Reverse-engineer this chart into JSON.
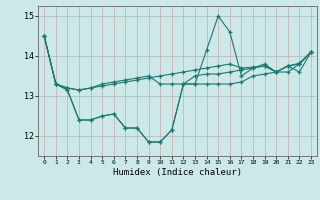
{
  "xlabel": "Humidex (Indice chaleur)",
  "bg_color": "#cce8e8",
  "line_color": "#1a7a6e",
  "x": [
    0,
    1,
    2,
    3,
    4,
    5,
    6,
    7,
    8,
    9,
    10,
    11,
    12,
    13,
    14,
    15,
    16,
    17,
    18,
    19,
    20,
    21,
    22,
    23
  ],
  "line1": [
    14.5,
    13.3,
    13.2,
    13.15,
    13.2,
    13.25,
    13.3,
    13.35,
    13.4,
    13.45,
    13.5,
    13.55,
    13.6,
    13.65,
    13.7,
    13.75,
    13.8,
    13.7,
    13.72,
    13.75,
    13.6,
    13.75,
    13.82,
    14.1
  ],
  "line2": [
    14.5,
    13.3,
    13.15,
    12.4,
    12.4,
    12.5,
    12.55,
    12.2,
    12.2,
    11.85,
    11.85,
    12.15,
    13.3,
    13.3,
    13.3,
    13.3,
    13.3,
    13.35,
    13.5,
    13.55,
    13.6,
    13.6,
    13.8,
    14.1
  ],
  "line3": [
    14.5,
    13.3,
    13.15,
    12.4,
    12.4,
    12.5,
    12.55,
    12.2,
    12.2,
    11.85,
    11.85,
    12.15,
    13.3,
    13.3,
    14.15,
    15.0,
    14.6,
    13.5,
    13.7,
    13.8,
    13.6,
    13.75,
    13.6,
    14.1
  ],
  "line4": [
    14.5,
    13.3,
    13.2,
    13.15,
    13.2,
    13.3,
    13.35,
    13.4,
    13.45,
    13.5,
    13.3,
    13.3,
    13.3,
    13.5,
    13.55,
    13.55,
    13.6,
    13.65,
    13.7,
    13.75,
    13.6,
    13.75,
    13.8,
    14.1
  ],
  "ylim": [
    11.5,
    15.25
  ],
  "yticks": [
    12,
    13,
    14,
    15
  ],
  "xlim": [
    -0.5,
    23.5
  ],
  "xticks": [
    0,
    1,
    2,
    3,
    4,
    5,
    6,
    7,
    8,
    9,
    10,
    11,
    12,
    13,
    14,
    15,
    16,
    17,
    18,
    19,
    20,
    21,
    22,
    23
  ]
}
